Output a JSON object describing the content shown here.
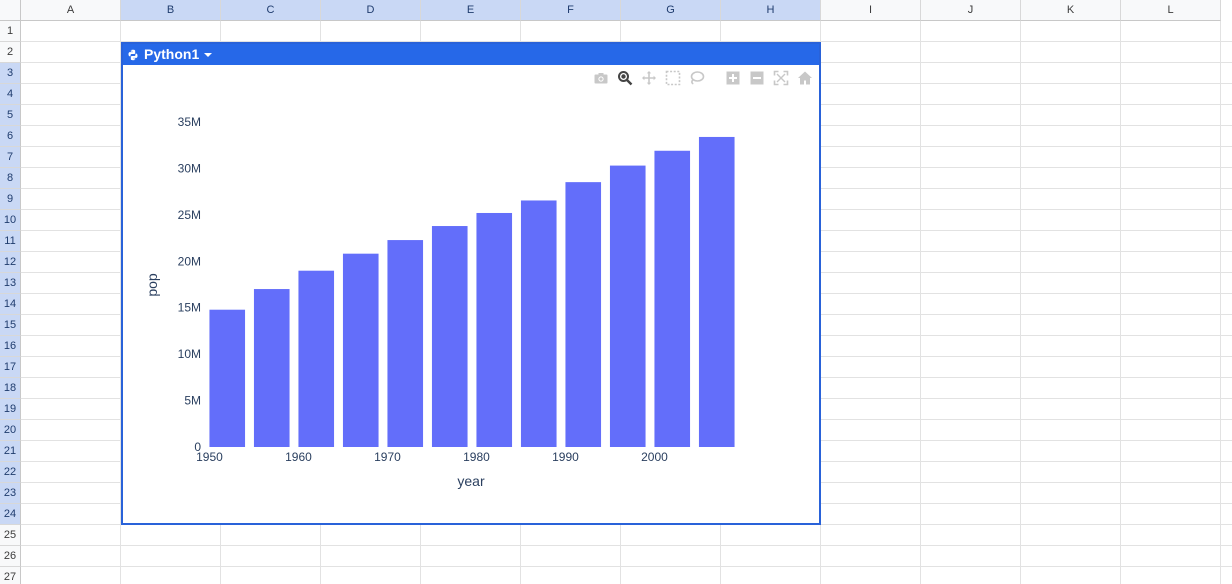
{
  "columns": [
    "A",
    "B",
    "C",
    "D",
    "E",
    "F",
    "G",
    "H",
    "I",
    "J",
    "K",
    "L"
  ],
  "selected_columns": [
    "B",
    "C",
    "D",
    "E",
    "F",
    "G",
    "H"
  ],
  "rows": [
    "1",
    "2",
    "3",
    "4",
    "5",
    "6",
    "7",
    "8",
    "9",
    "10",
    "11",
    "12",
    "13",
    "14",
    "15",
    "16",
    "17",
    "18",
    "19",
    "20",
    "21",
    "22",
    "23",
    "24",
    "25",
    "26",
    "27"
  ],
  "selected_rows": [
    "3",
    "4",
    "5",
    "6",
    "7",
    "8",
    "9",
    "10",
    "11",
    "12",
    "13",
    "14",
    "15",
    "16",
    "17",
    "18",
    "19",
    "20",
    "21",
    "22",
    "23",
    "24"
  ],
  "widget": {
    "title": "Python1",
    "accent": "#2668e8"
  },
  "modebar": {
    "icons": [
      "camera-icon",
      "zoom-icon",
      "pan-icon",
      "box-select-icon",
      "lasso-icon",
      "zoom-in-icon",
      "zoom-out-icon",
      "autoscale-icon",
      "home-icon"
    ]
  },
  "chart_data": {
    "type": "bar",
    "x": [
      1952,
      1957,
      1962,
      1967,
      1972,
      1977,
      1982,
      1987,
      1992,
      1997,
      2002,
      2007
    ],
    "values": [
      14785584,
      17010154,
      18985849,
      20819767,
      22284500,
      23796400,
      25201900,
      26549700,
      28523502,
      30305843,
      31902268,
      33390141
    ],
    "bar_color": "#636efa",
    "xlabel": "year",
    "ylabel": "pop",
    "x_ticks": [
      "1950",
      "1960",
      "1970",
      "1980",
      "1990",
      "2000"
    ],
    "y_ticks": [
      "0",
      "5M",
      "10M",
      "15M",
      "20M",
      "25M",
      "30M",
      "35M"
    ],
    "ylim": [
      0,
      35000000
    ],
    "xlim": [
      1949.5,
      2009.5
    ],
    "grid": false,
    "title": ""
  }
}
